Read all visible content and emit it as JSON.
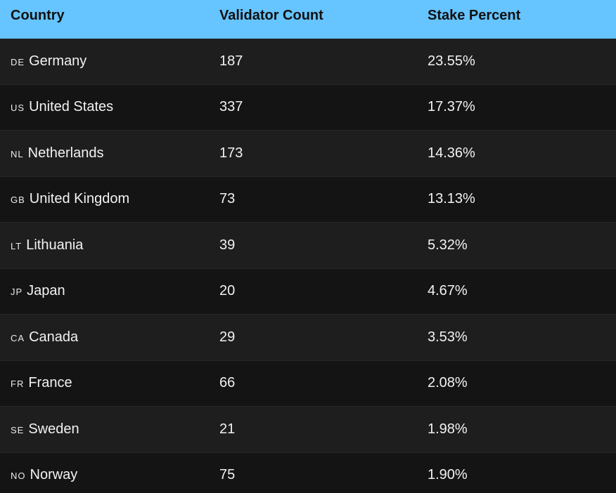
{
  "header": {
    "country": "Country",
    "validator_count": "Validator Count",
    "stake_percent": "Stake Percent"
  },
  "rows": [
    {
      "code": "DE",
      "country": "Germany",
      "count": "187",
      "stake": "23.55%"
    },
    {
      "code": "US",
      "country": "United States",
      "count": "337",
      "stake": "17.37%"
    },
    {
      "code": "NL",
      "country": "Netherlands",
      "count": "173",
      "stake": "14.36%"
    },
    {
      "code": "GB",
      "country": "United Kingdom",
      "count": "73",
      "stake": "13.13%"
    },
    {
      "code": "LT",
      "country": "Lithuania",
      "count": "39",
      "stake": "5.32%"
    },
    {
      "code": "JP",
      "country": "Japan",
      "count": "20",
      "stake": "4.67%"
    },
    {
      "code": "CA",
      "country": "Canada",
      "count": "29",
      "stake": "3.53%"
    },
    {
      "code": "FR",
      "country": "France",
      "count": "66",
      "stake": "2.08%"
    },
    {
      "code": "SE",
      "country": "Sweden",
      "count": "21",
      "stake": "1.98%"
    },
    {
      "code": "NO",
      "country": "Norway",
      "count": "75",
      "stake": "1.90%"
    }
  ]
}
